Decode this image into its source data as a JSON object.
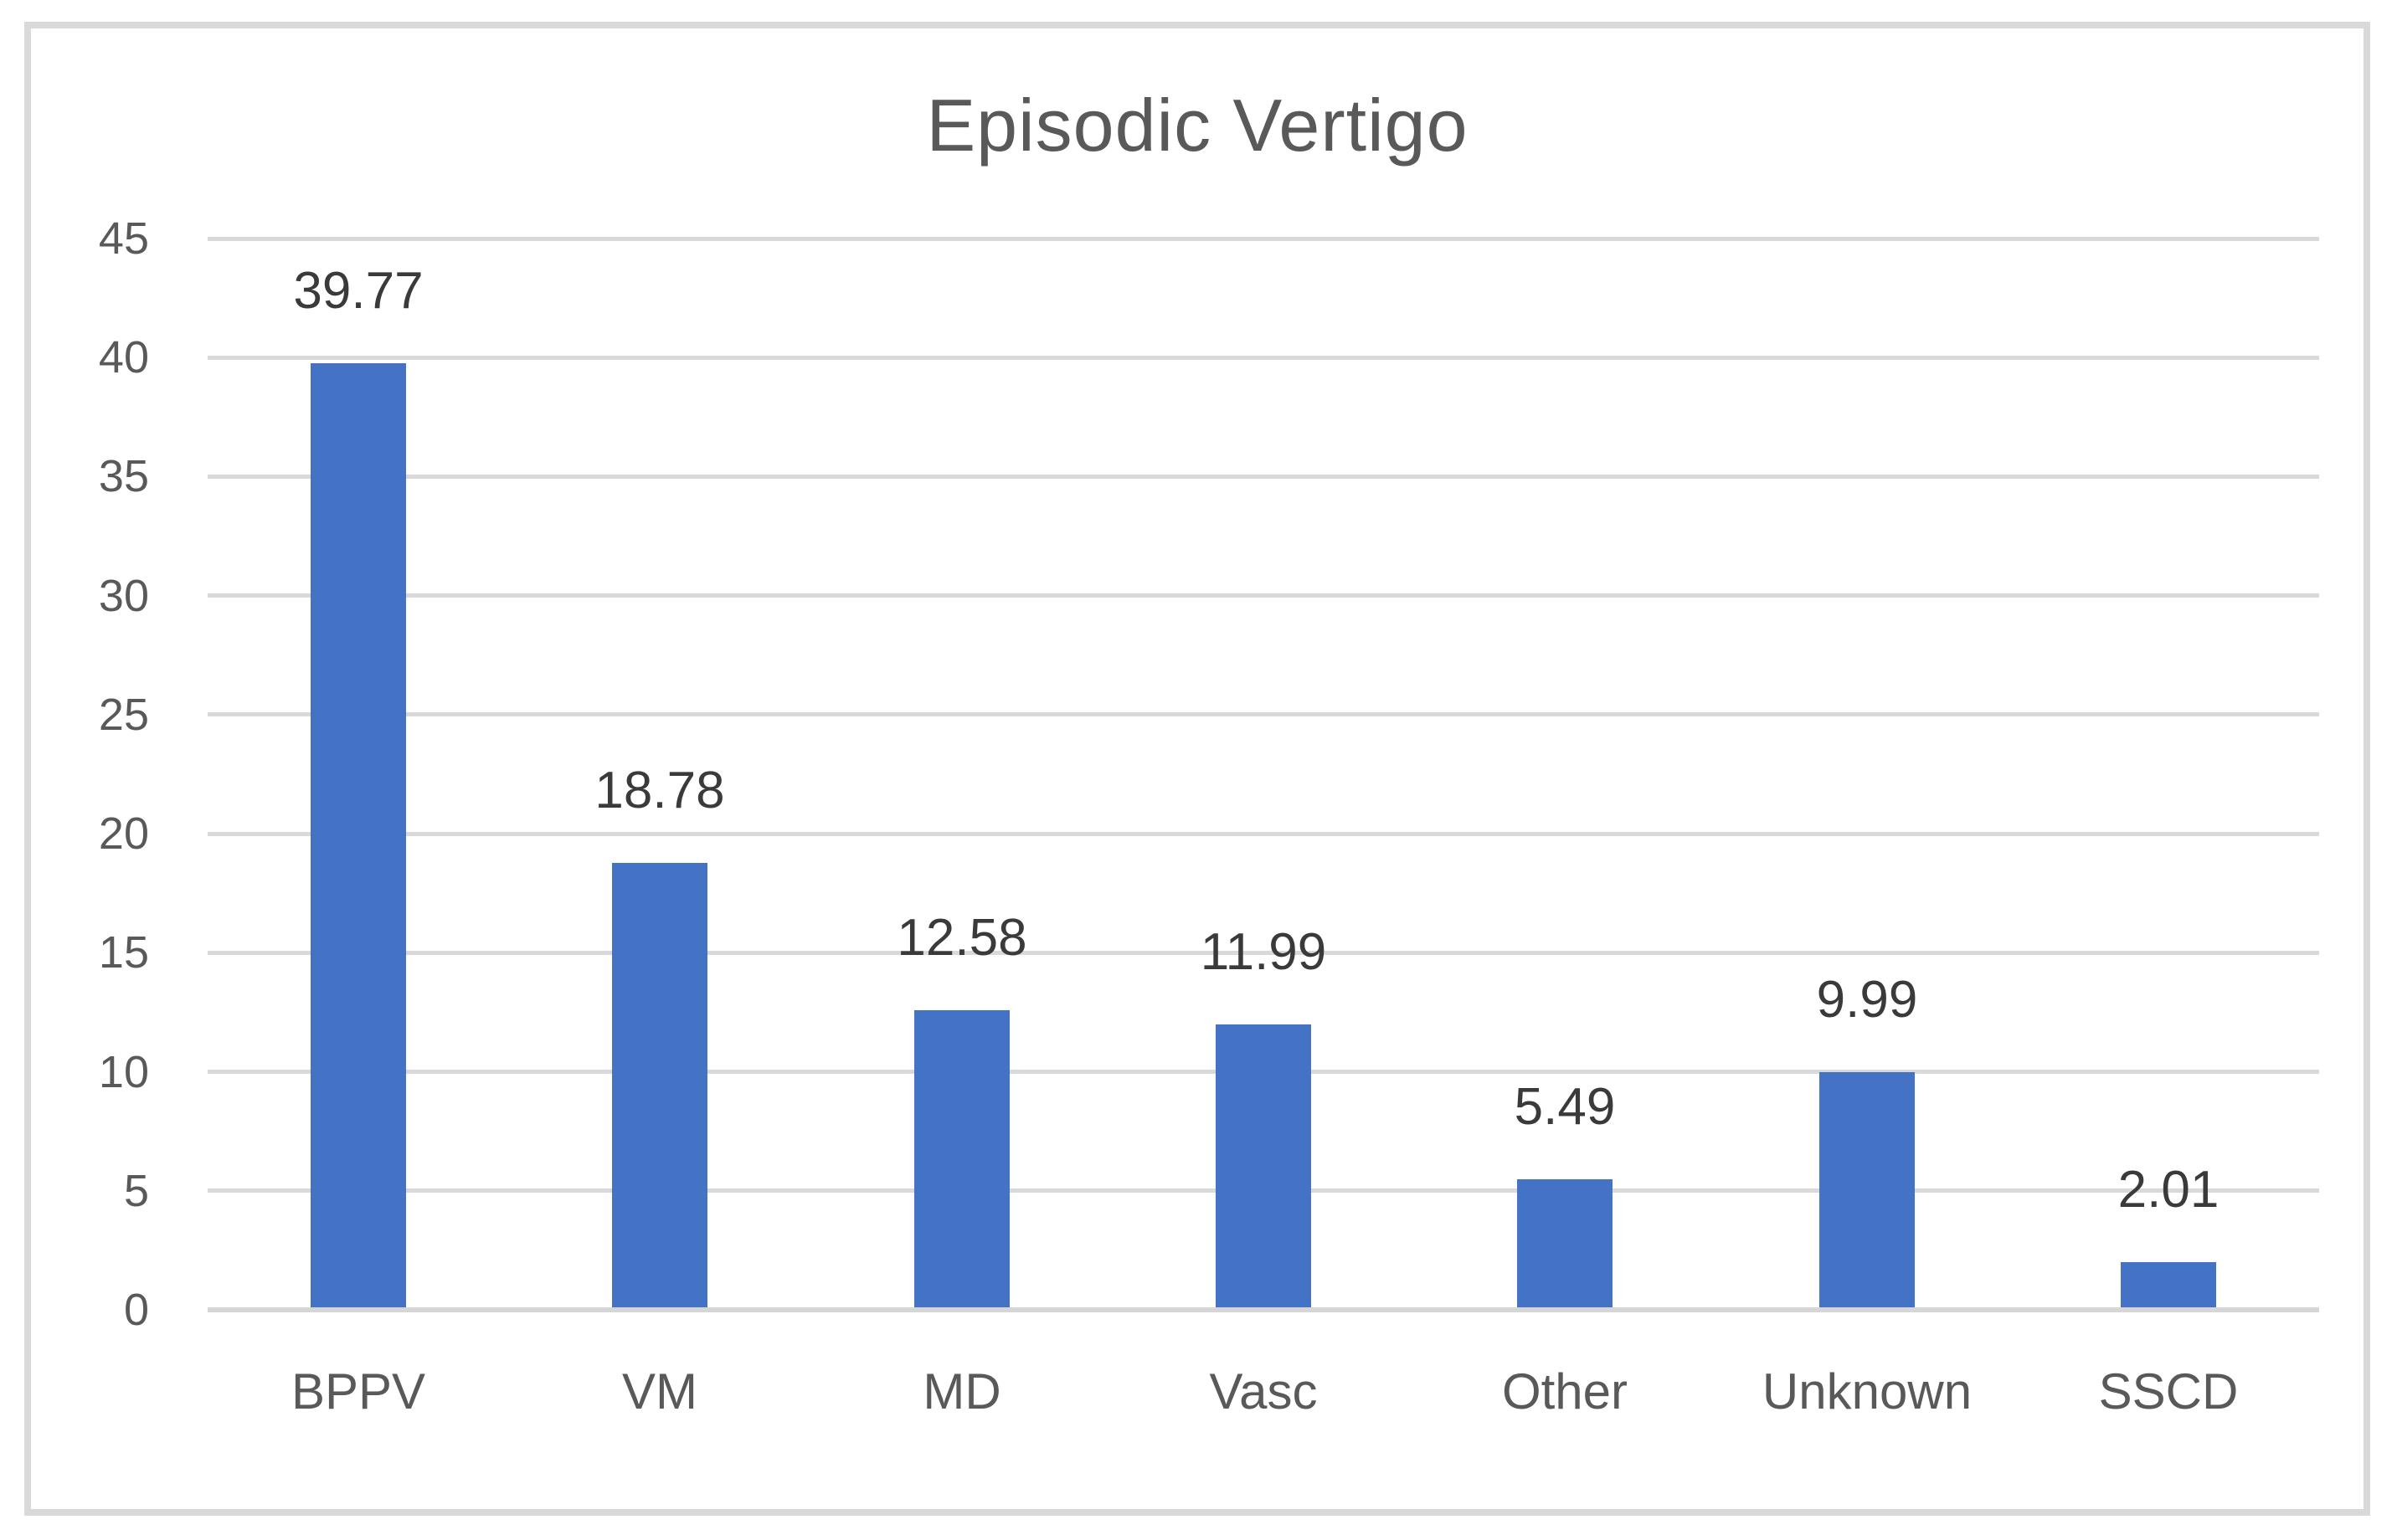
{
  "chart_data": {
    "type": "bar",
    "title": "Episodic Vertigo",
    "categories": [
      "BPPV",
      "VM",
      "MD",
      "Vasc",
      "Other",
      "Unknown",
      "SSCD"
    ],
    "values": [
      39.77,
      18.78,
      12.58,
      11.99,
      5.49,
      9.99,
      2.01
    ],
    "data_labels": [
      "39.77",
      "18.78",
      "12.58",
      "11.99",
      "5.49",
      "9.99",
      "2.01"
    ],
    "y_ticks": [
      0,
      5,
      10,
      15,
      20,
      25,
      30,
      35,
      40,
      45
    ],
    "ylim": [
      0,
      45
    ],
    "xlabel": "",
    "ylabel": "",
    "grid": true,
    "legend": false,
    "colors": {
      "bar": "#4472C4",
      "gridline": "#D9D9D9",
      "axis_line": "#D6D6D6",
      "frame_border": "#D9D9D9",
      "title_text": "#595959",
      "axis_text": "#595959",
      "data_label_text": "#3A3A3A",
      "background": "#FFFFFF"
    }
  }
}
